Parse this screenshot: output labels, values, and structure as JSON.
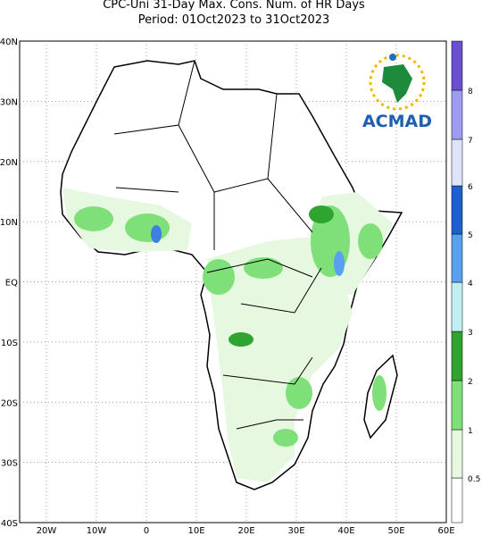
{
  "header": {
    "title_line1": "CPC-Uni 31-Day Max. Cons. Num. of HR Days",
    "title_line2": "Period: 01Oct2023 to 31Oct2023"
  },
  "map": {
    "lat_labels": [
      "40N",
      "30N",
      "20N",
      "10N",
      "EQ",
      "10S",
      "20S",
      "30S",
      "40S"
    ],
    "lon_labels": [
      "20W",
      "10W",
      "0",
      "10E",
      "20E",
      "30E",
      "40E",
      "50E",
      "60E"
    ]
  },
  "colorbar": {
    "labels": [
      "0.5",
      "1",
      "2",
      "3",
      "4",
      "5",
      "6",
      "7",
      "8"
    ]
  },
  "logo": {
    "text": "ACMAD"
  }
}
